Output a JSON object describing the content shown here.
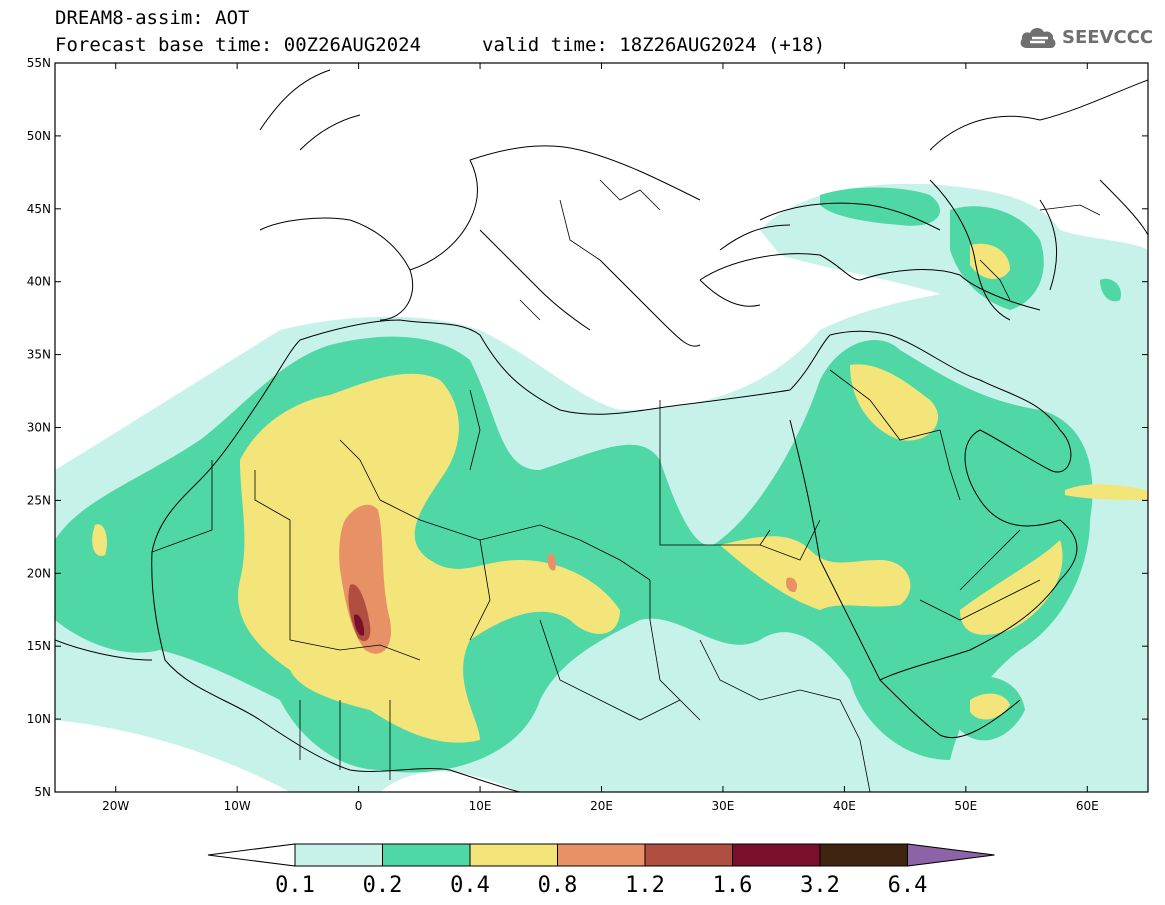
{
  "header": {
    "title": "DREAM8-assim: AOT",
    "base_time": "Forecast base time: 00Z26AUG2024",
    "valid_time": "valid time: 18Z26AUG2024 (+18)"
  },
  "logo": {
    "text": "SEEVCCC",
    "icon": "cloud-icon"
  },
  "map": {
    "lon_range": [
      -25,
      65
    ],
    "lat_range": [
      5,
      55
    ],
    "lat_ticks": [
      "5N",
      "10N",
      "15N",
      "20N",
      "25N",
      "30N",
      "35N",
      "40N",
      "45N",
      "50N",
      "55N"
    ],
    "lon_ticks": [
      "20W",
      "10W",
      "0",
      "10E",
      "20E",
      "30E",
      "40E",
      "50E",
      "60E"
    ]
  },
  "colorbar": {
    "labels": [
      "0.1",
      "0.2",
      "0.4",
      "0.8",
      "1.2",
      "1.6",
      "3.2",
      "6.4"
    ],
    "colors": [
      "#c6f2ea",
      "#50d7a6",
      "#f4e57a",
      "#e89066",
      "#b04e3f",
      "#7a0f2b",
      "#3f2412",
      "#8d63a8"
    ]
  }
}
